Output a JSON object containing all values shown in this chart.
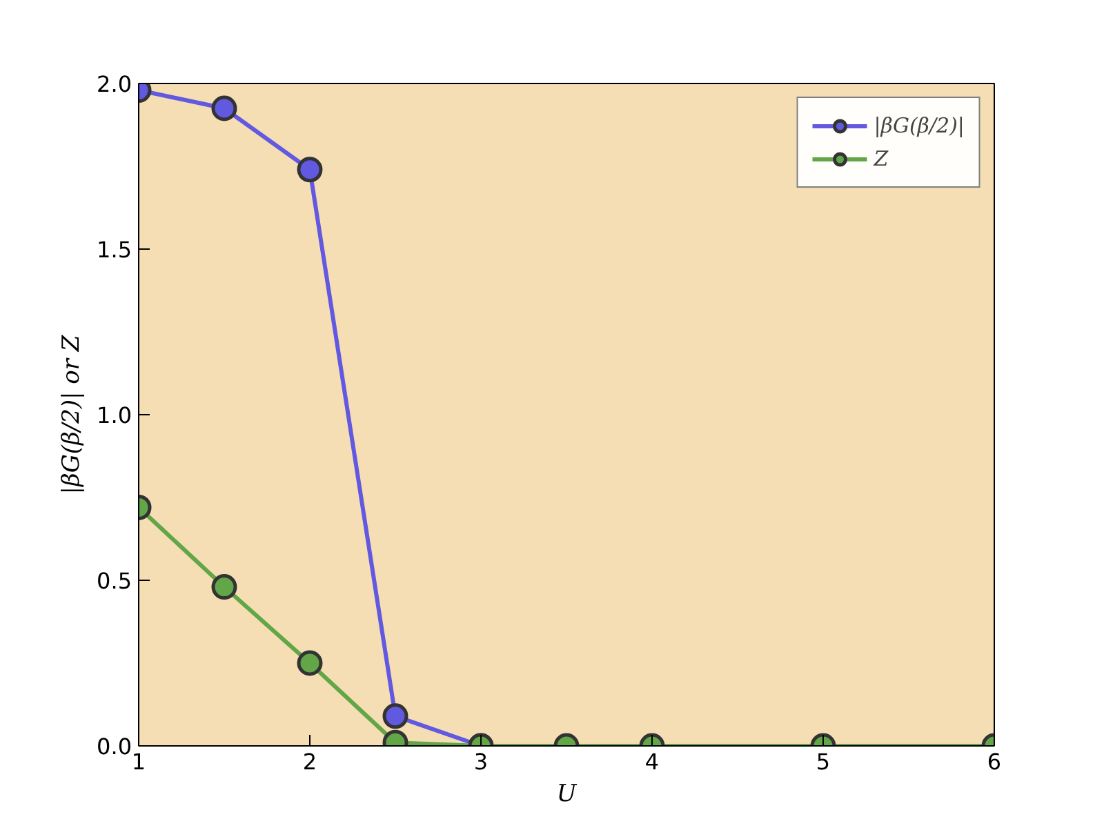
{
  "chart_data": {
    "type": "line",
    "xlabel": "U",
    "ylabel": "|βG(β/2)| or Z",
    "x": [
      1,
      1.5,
      2,
      2.5,
      3,
      3.5,
      4,
      5,
      6
    ],
    "series": [
      {
        "name": "|βG(β/2)|",
        "color": "#6259e1",
        "values": [
          1.98,
          1.925,
          1.74,
          0.09,
          0,
          null,
          null,
          null,
          null
        ]
      },
      {
        "name": "Z",
        "color": "#62a648",
        "values": [
          0.72,
          0.48,
          0.25,
          0.01,
          0,
          0,
          0,
          0,
          0
        ]
      }
    ],
    "xlim": [
      1,
      6
    ],
    "xticks": [
      1,
      2,
      3,
      4,
      5,
      6
    ],
    "ylim": [
      0,
      2.0
    ],
    "yticks": [
      {
        "value": 0,
        "label": "0.0"
      },
      {
        "value": 0.5,
        "label": "0.5"
      },
      {
        "value": 1.0,
        "label": "1.0"
      },
      {
        "value": 1.5,
        "label": "1.5"
      },
      {
        "value": 2.0,
        "label": "2.0"
      }
    ],
    "grid": false,
    "legend": "top right",
    "marker": "circle",
    "line_style": "solid"
  }
}
